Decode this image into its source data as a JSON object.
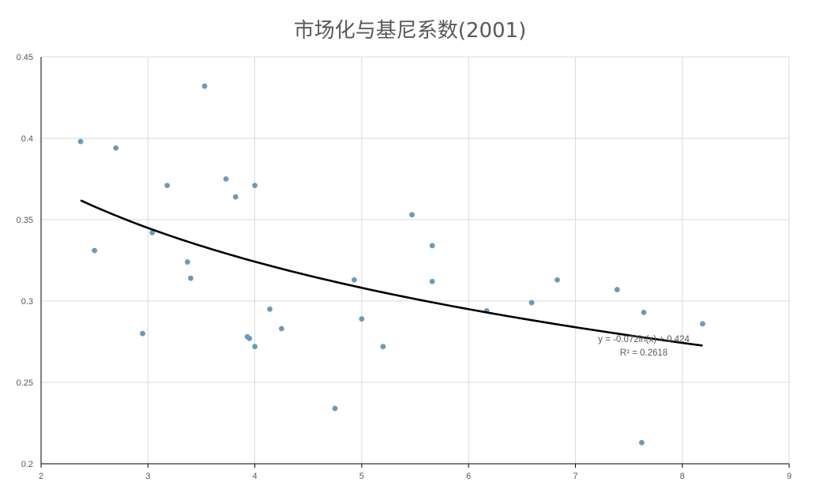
{
  "chart_data": {
    "type": "scatter",
    "title": "市场化与基尼系数(2001)",
    "xlabel": "",
    "ylabel": "",
    "xlim": [
      2,
      9
    ],
    "ylim": [
      0.2,
      0.45
    ],
    "x_ticks": [
      "2",
      "3",
      "4",
      "5",
      "6",
      "7",
      "8",
      "9"
    ],
    "y_ticks": [
      "0.2",
      "0.25",
      "0.3",
      "0.35",
      "0.4",
      "0.45"
    ],
    "grid": true,
    "colors": {
      "points": "#6a9bbd",
      "trendline": "#000000",
      "grid": "#d9d9d9",
      "axis": "#000000"
    },
    "points": [
      {
        "x": 2.37,
        "y": 0.398
      },
      {
        "x": 2.5,
        "y": 0.331
      },
      {
        "x": 2.7,
        "y": 0.394
      },
      {
        "x": 2.95,
        "y": 0.28
      },
      {
        "x": 3.04,
        "y": 0.342
      },
      {
        "x": 3.18,
        "y": 0.371
      },
      {
        "x": 3.37,
        "y": 0.324
      },
      {
        "x": 3.4,
        "y": 0.314
      },
      {
        "x": 3.53,
        "y": 0.432
      },
      {
        "x": 3.73,
        "y": 0.375
      },
      {
        "x": 3.82,
        "y": 0.364
      },
      {
        "x": 3.93,
        "y": 0.278
      },
      {
        "x": 3.95,
        "y": 0.277
      },
      {
        "x": 4.0,
        "y": 0.371
      },
      {
        "x": 4.0,
        "y": 0.272
      },
      {
        "x": 4.14,
        "y": 0.295
      },
      {
        "x": 4.25,
        "y": 0.283
      },
      {
        "x": 4.75,
        "y": 0.234
      },
      {
        "x": 4.93,
        "y": 0.313
      },
      {
        "x": 5.0,
        "y": 0.289
      },
      {
        "x": 5.2,
        "y": 0.272
      },
      {
        "x": 5.47,
        "y": 0.353
      },
      {
        "x": 5.66,
        "y": 0.334
      },
      {
        "x": 5.66,
        "y": 0.312
      },
      {
        "x": 6.17,
        "y": 0.294
      },
      {
        "x": 6.59,
        "y": 0.299
      },
      {
        "x": 6.83,
        "y": 0.313
      },
      {
        "x": 7.39,
        "y": 0.307
      },
      {
        "x": 7.62,
        "y": 0.213
      },
      {
        "x": 7.64,
        "y": 0.293
      },
      {
        "x": 8.19,
        "y": 0.286
      }
    ],
    "trendline": {
      "type": "logarithmic",
      "a": -0.072,
      "b": 0.424,
      "x_range": [
        2.37,
        8.19
      ],
      "equation": "y = -0.072ln(x) + 0.424",
      "r_squared": "R² = 0.2618"
    }
  }
}
